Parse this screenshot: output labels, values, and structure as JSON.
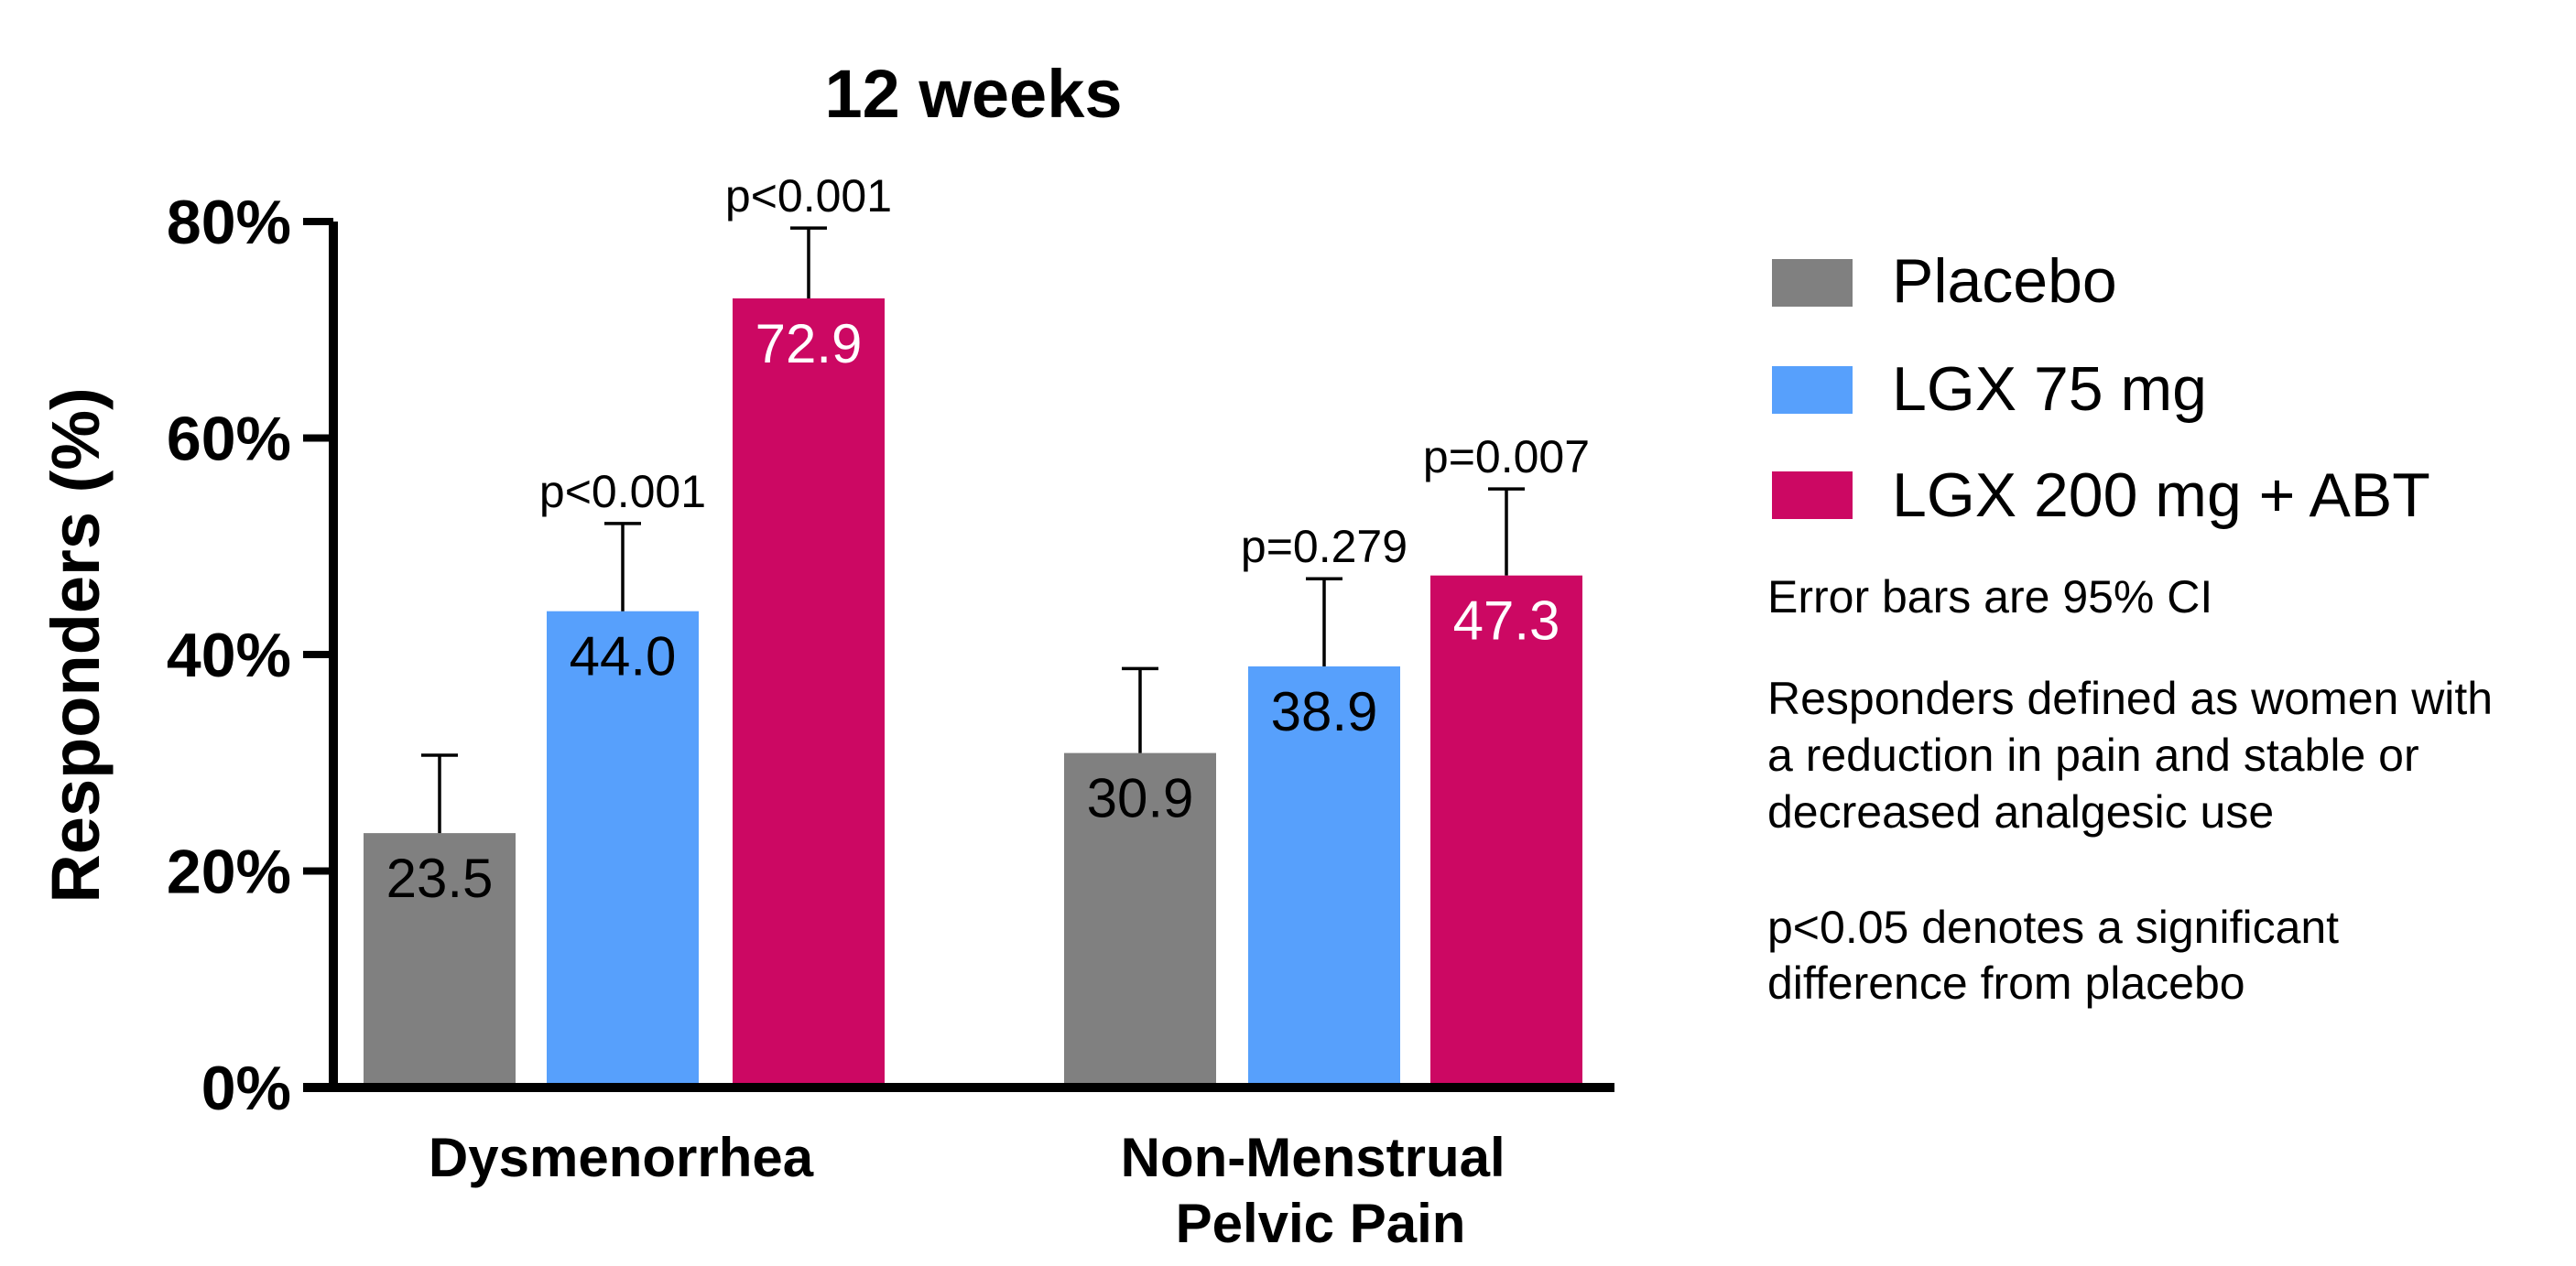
{
  "chart_data": {
    "type": "bar",
    "title": "12 weeks",
    "ylabel": "Responders (%)",
    "xlabel": "",
    "ylim": [
      0,
      80
    ],
    "yticks": [
      0,
      20,
      40,
      60,
      80
    ],
    "ytick_labels": [
      "0%",
      "20%",
      "40%",
      "60%",
      "80%"
    ],
    "categories": [
      "Dysmenorrhea",
      "Non-Menstrual\nPelvic Pain"
    ],
    "series": [
      {
        "name": "Placebo",
        "color": "#808080",
        "values": [
          23.5,
          30.9
        ],
        "labels": [
          "23.5",
          "30.9"
        ],
        "label_color": "#000000",
        "ci_upper": [
          30.7,
          38.7
        ],
        "pvalues": [
          "",
          ""
        ]
      },
      {
        "name": "LGX 75 mg",
        "color": "#57A0FC",
        "values": [
          44.0,
          38.9
        ],
        "labels": [
          "44.0",
          "38.9"
        ],
        "label_color": "#000000",
        "ci_upper": [
          52.1,
          47.0
        ],
        "pvalues": [
          "p<0.001",
          "p=0.279"
        ]
      },
      {
        "name": "LGX 200 mg + ABT",
        "color": "#CC0863",
        "values": [
          72.9,
          47.3
        ],
        "labels": [
          "72.9",
          "47.3"
        ],
        "label_color": "#ffffff",
        "ci_upper": [
          79.4,
          55.3
        ],
        "pvalues": [
          "p<0.001",
          "p=0.007"
        ]
      }
    ],
    "grid": false,
    "legend_position": "right"
  },
  "notes": {
    "error_bars": "Error bars are 95% CI",
    "responders": [
      "Responders defined as women with",
      "a reduction in pain and stable or",
      "decreased analgesic use"
    ],
    "significance": [
      "p<0.05 denotes a significant",
      "difference from placebo"
    ]
  }
}
